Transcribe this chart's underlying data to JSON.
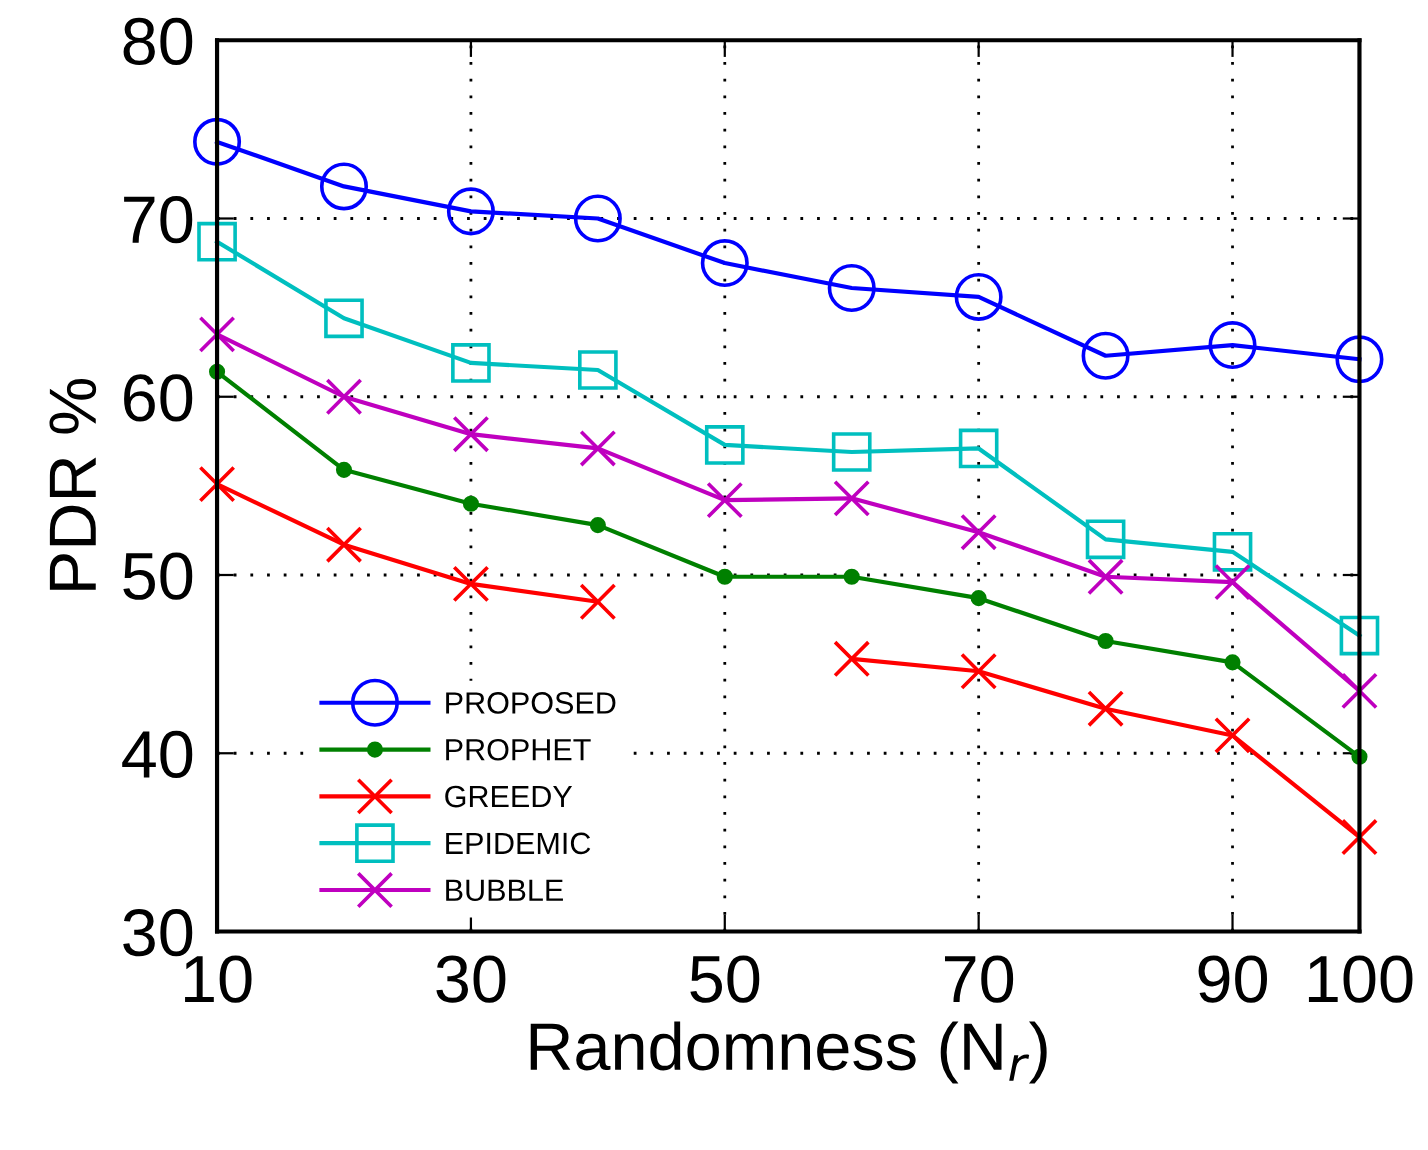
{
  "chart_data": {
    "type": "line",
    "xlabel": "Randomness (N$_{r}$)",
    "ylabel": "PDR %",
    "x": [
      10,
      20,
      30,
      40,
      50,
      60,
      70,
      80,
      90,
      100
    ],
    "xlim": [
      10,
      100
    ],
    "xticks": [
      10,
      30,
      50,
      70,
      90,
      100
    ],
    "ylim": [
      30,
      80
    ],
    "yticks": [
      30,
      40,
      50,
      60,
      70,
      80
    ],
    "grid": true,
    "legend": "bottom left",
    "line_style": "solid",
    "series": [
      {
        "name": "PROPOSED",
        "color": "#0000ff",
        "marker": "circle",
        "values": [
          74.3,
          71.8,
          70.4,
          70.0,
          67.5,
          66.1,
          65.6,
          62.3,
          62.9,
          62.1
        ]
      },
      {
        "name": "PROPHET",
        "color": "#008000",
        "marker": "point",
        "values": [
          61.4,
          55.9,
          54.0,
          52.8,
          49.9,
          49.9,
          48.7,
          46.3,
          45.1,
          39.8
        ]
      },
      {
        "name": "GREEDY",
        "color": "#ff0000",
        "marker": "cross",
        "values": [
          55.1,
          51.7,
          49.5,
          48.5,
          null,
          45.3,
          44.6,
          42.5,
          41.0,
          35.3
        ]
      },
      {
        "name": "EPIDEMIC",
        "color": "#00bfbf",
        "marker": "square",
        "values": [
          68.7,
          64.4,
          61.9,
          61.5,
          57.3,
          56.9,
          57.1,
          52.0,
          51.3,
          46.6
        ]
      },
      {
        "name": "BUBBLE",
        "color": "#bf00bf",
        "marker": "cross",
        "values": [
          63.5,
          60.0,
          57.9,
          57.1,
          54.2,
          54.3,
          52.4,
          49.9,
          49.6,
          43.5
        ]
      }
    ]
  }
}
